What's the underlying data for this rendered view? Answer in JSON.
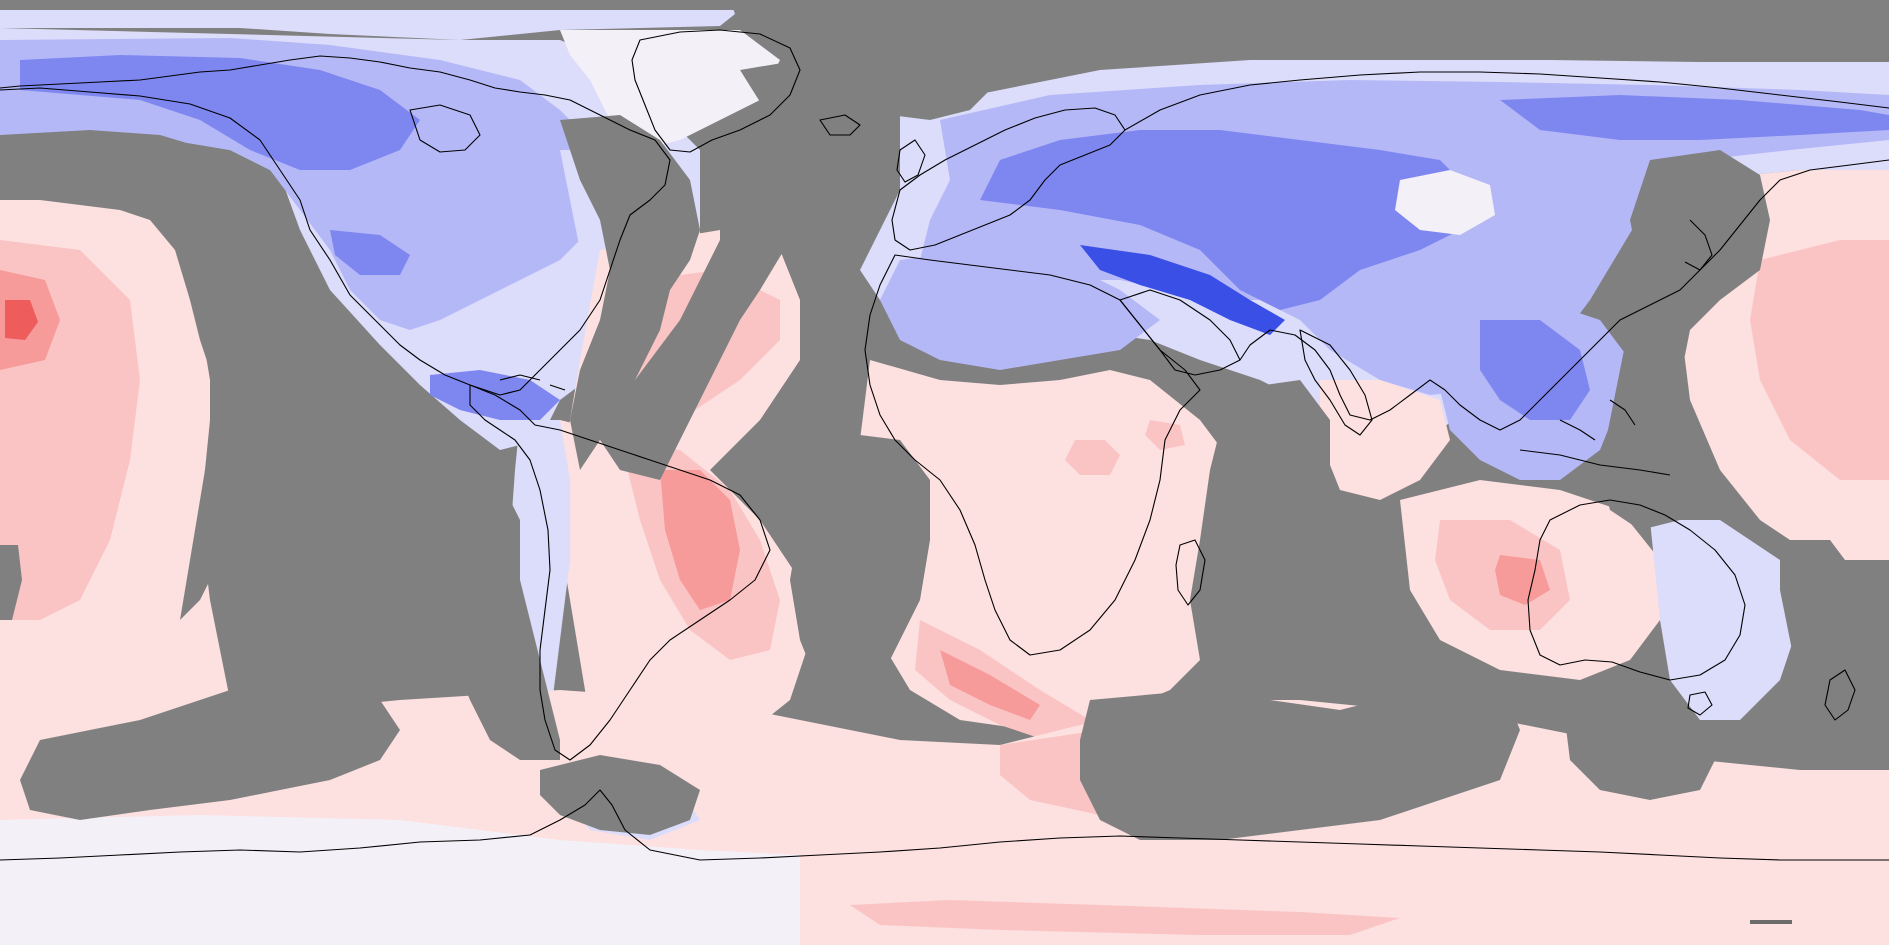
{
  "map": {
    "projection": "equirectangular",
    "colors": {
      "missing": "#808080",
      "coastline": "#000000",
      "strong_cool": "#3a4fe6",
      "cool": "#7e87f0",
      "mild_cool": "#b5b8f7",
      "slight_cool": "#dcdcfb",
      "near_zero": "#f4f0f7",
      "slight_warm": "#fde0e0",
      "mild_warm": "#fbc4c4",
      "warm": "#f69a9a",
      "strong_warm": "#ee5c5c"
    }
  }
}
